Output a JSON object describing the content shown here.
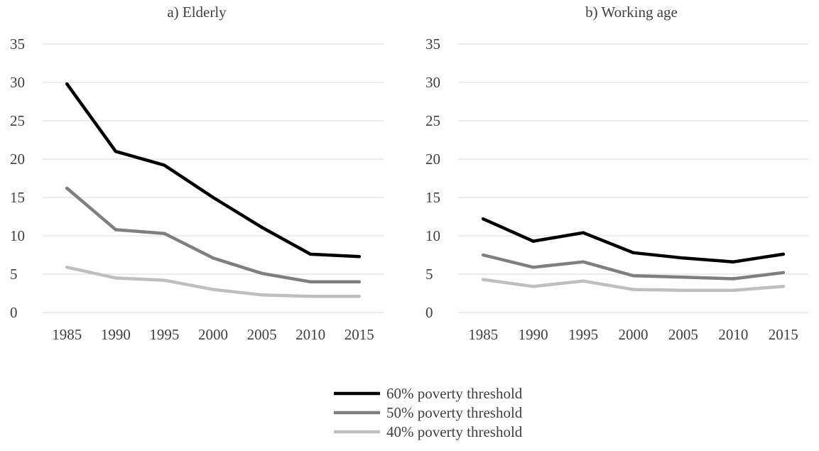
{
  "chart_data": [
    {
      "type": "line",
      "title": "a) Elderly",
      "xlabel": "",
      "ylabel": "",
      "ylim": [
        0,
        35
      ],
      "yticks": [
        "0",
        "5",
        "10",
        "15",
        "20",
        "25",
        "30",
        "35"
      ],
      "grid": true,
      "categories": [
        "1985",
        "1990",
        "1995",
        "2000",
        "2005",
        "2010",
        "2015"
      ],
      "series": [
        {
          "name": "60% poverty threshold",
          "color": "#000000",
          "values": [
            29.8,
            21.0,
            19.2,
            15.0,
            11.1,
            7.6,
            7.3
          ]
        },
        {
          "name": "50% poverty threshold",
          "color": "#7f7f7f",
          "values": [
            16.2,
            10.8,
            10.3,
            7.1,
            5.1,
            4.0,
            4.0
          ]
        },
        {
          "name": "40% poverty threshold",
          "color": "#bfbfbf",
          "values": [
            5.9,
            4.5,
            4.2,
            3.0,
            2.3,
            2.1,
            2.1
          ]
        }
      ]
    },
    {
      "type": "line",
      "title": "b) Working age",
      "xlabel": "",
      "ylabel": "",
      "ylim": [
        0,
        35
      ],
      "yticks": [
        "0",
        "5",
        "10",
        "15",
        "20",
        "25",
        "30",
        "35"
      ],
      "grid": true,
      "categories": [
        "1985",
        "1990",
        "1995",
        "2000",
        "2005",
        "2010",
        "2015"
      ],
      "series": [
        {
          "name": "60% poverty threshold",
          "color": "#000000",
          "values": [
            12.2,
            9.3,
            10.4,
            7.8,
            7.1,
            6.6,
            7.6
          ]
        },
        {
          "name": "50% poverty threshold",
          "color": "#7f7f7f",
          "values": [
            7.5,
            5.9,
            6.6,
            4.8,
            4.6,
            4.4,
            5.2
          ]
        },
        {
          "name": "40% poverty threshold",
          "color": "#bfbfbf",
          "values": [
            4.3,
            3.4,
            4.1,
            3.0,
            2.9,
            2.9,
            3.4
          ]
        }
      ]
    }
  ],
  "legend": {
    "position": "bottom-center",
    "items": [
      {
        "label": "60% poverty threshold",
        "color": "#000000"
      },
      {
        "label": "50% poverty threshold",
        "color": "#7f7f7f"
      },
      {
        "label": "40% poverty threshold",
        "color": "#bfbfbf"
      }
    ]
  }
}
